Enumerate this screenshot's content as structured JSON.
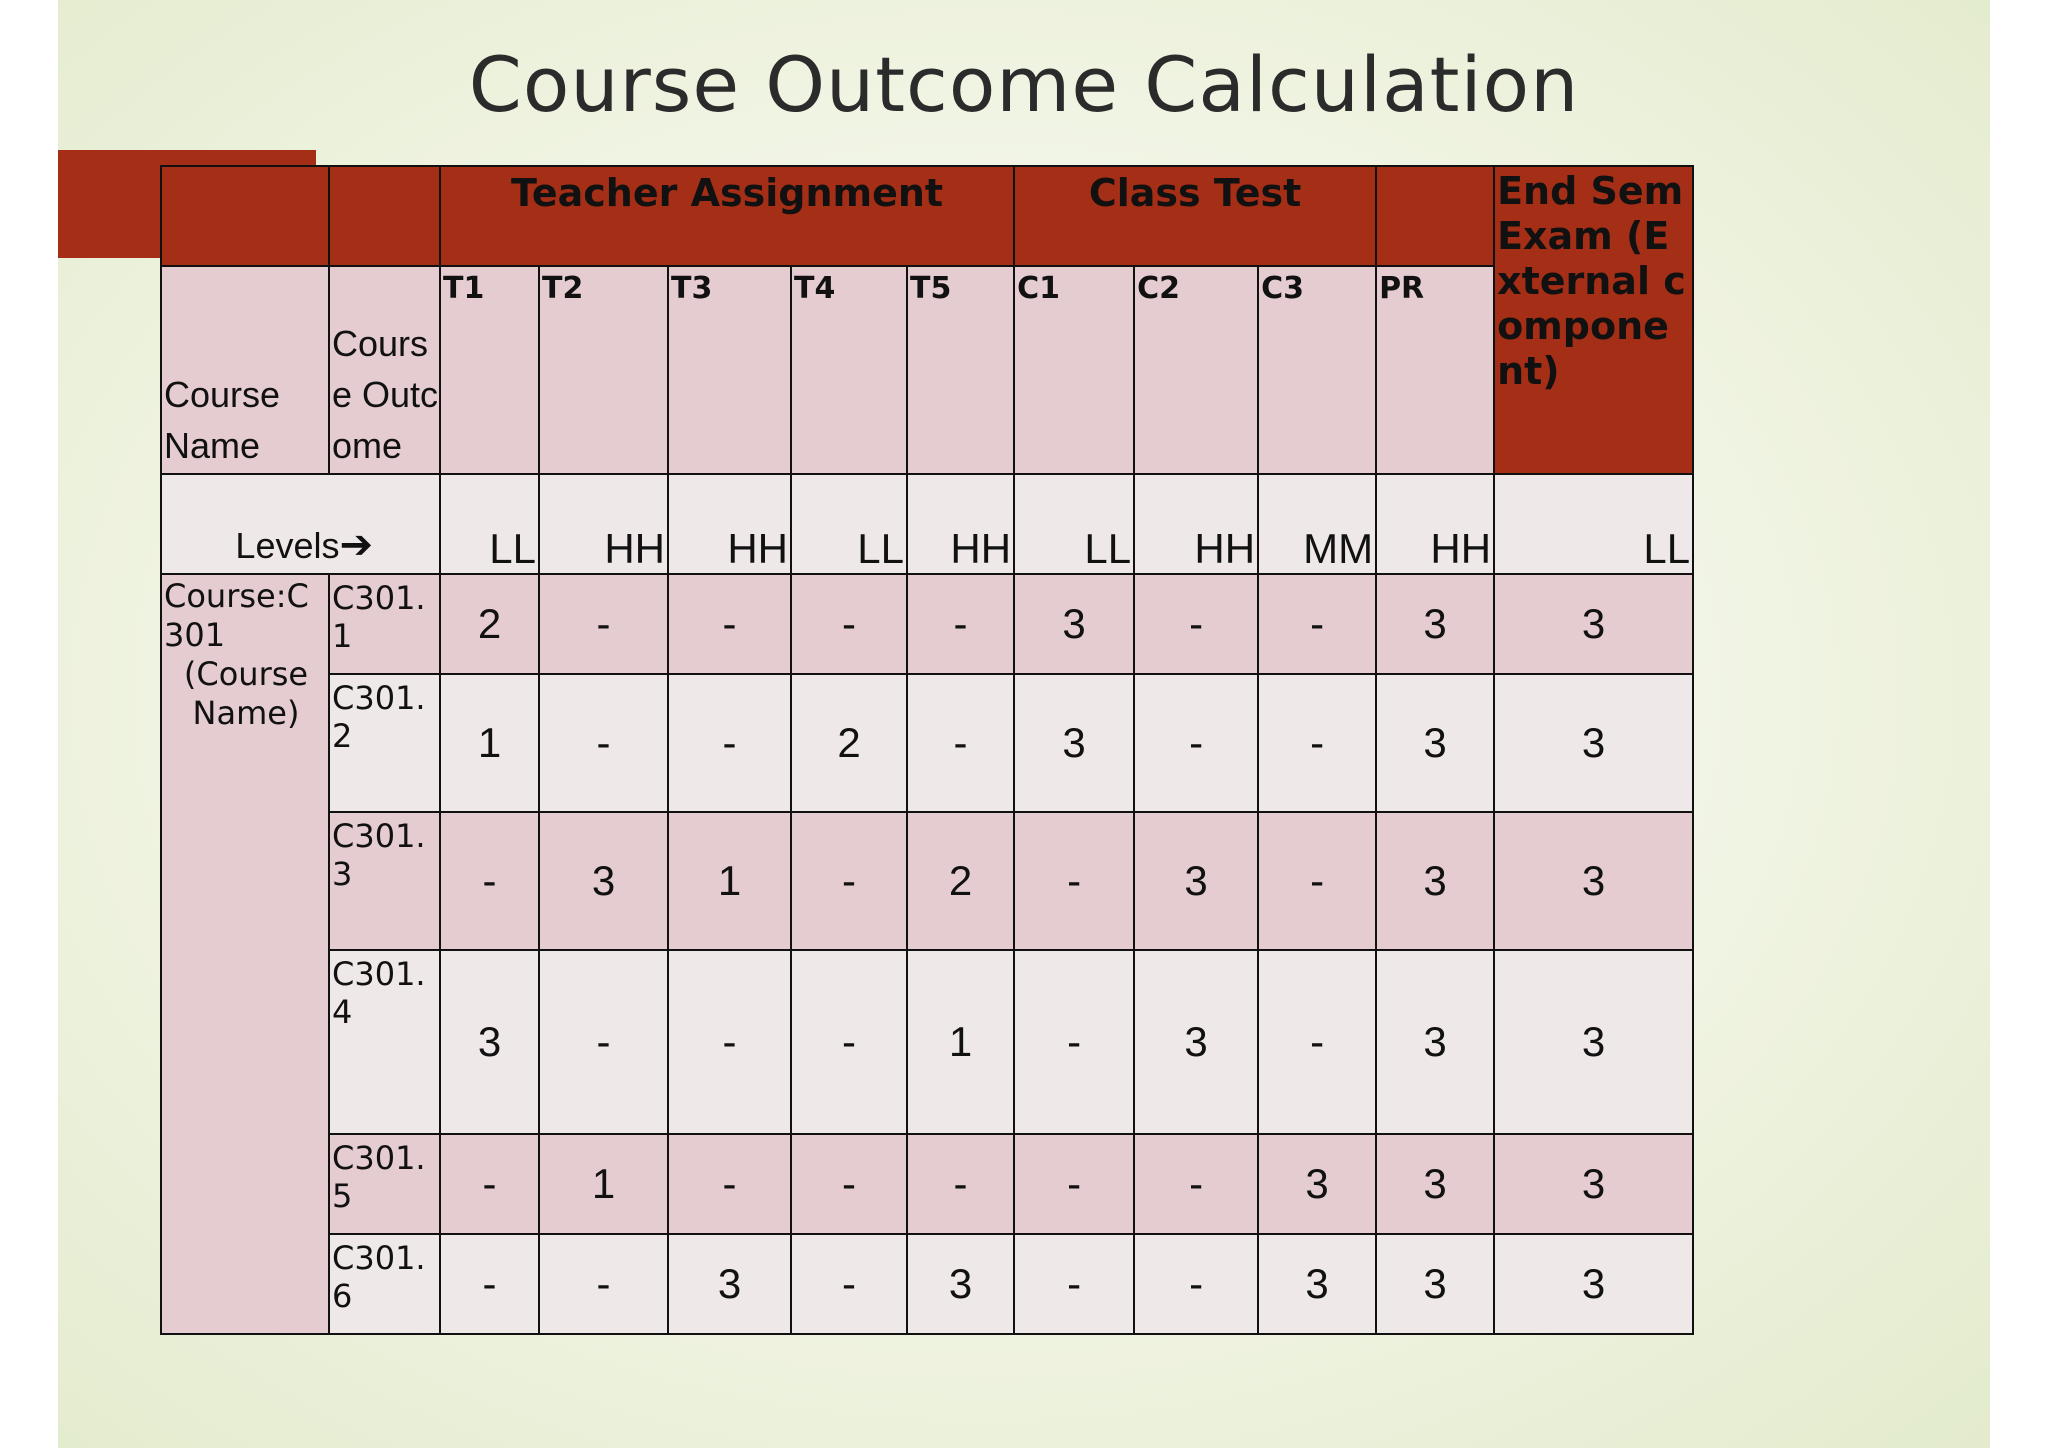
{
  "title": "Course Outcome Calculation",
  "table": {
    "group_headers": {
      "teacher_assignment": "Teacher Assignment",
      "class_test": "Class Test",
      "end_sem": "End Sem Exam (External component)"
    },
    "col_course_name": "Course Name",
    "col_course_outcome": "Course Outcome",
    "sub_headers": [
      "T1",
      "T2",
      "T3",
      "T4",
      "T5",
      "C1",
      "C2",
      "C3",
      "PR"
    ],
    "levels_label": "Levels",
    "levels_arrow": "➔",
    "levels": [
      "LL",
      "HH",
      "HH",
      "LL",
      "HH",
      "LL",
      "HH",
      "MM",
      "HH",
      "LL"
    ],
    "course_line1": "Course:C301",
    "course_line2": "(Course Name)",
    "rows": [
      {
        "co": "C301.1",
        "values": [
          "2",
          "-",
          "-",
          "-",
          "-",
          "3",
          "-",
          "-",
          "3",
          "3"
        ]
      },
      {
        "co": "C301.2",
        "values": [
          "1",
          "-",
          "-",
          "2",
          "-",
          "3",
          "-",
          "-",
          "3",
          "3"
        ]
      },
      {
        "co": "C301.3",
        "values": [
          "-",
          "3",
          "1",
          "-",
          "2",
          "-",
          "3",
          "-",
          "3",
          "3"
        ]
      },
      {
        "co": "C301.4",
        "values": [
          "3",
          "-",
          "-",
          "-",
          "1",
          "-",
          "3",
          "-",
          "3",
          "3"
        ]
      },
      {
        "co": "C301.5",
        "values": [
          "-",
          "1",
          "-",
          "-",
          "-",
          "-",
          "-",
          "3",
          "3",
          "3"
        ]
      },
      {
        "co": "C301.6",
        "values": [
          "-",
          "-",
          "3",
          "-",
          "3",
          "-",
          "-",
          "3",
          "3",
          "3"
        ]
      }
    ]
  },
  "colors": {
    "header_red": "#a52e16",
    "row_pink": "#e4ccd1",
    "row_light": "#efe8e8",
    "background": "#eef2e0"
  }
}
